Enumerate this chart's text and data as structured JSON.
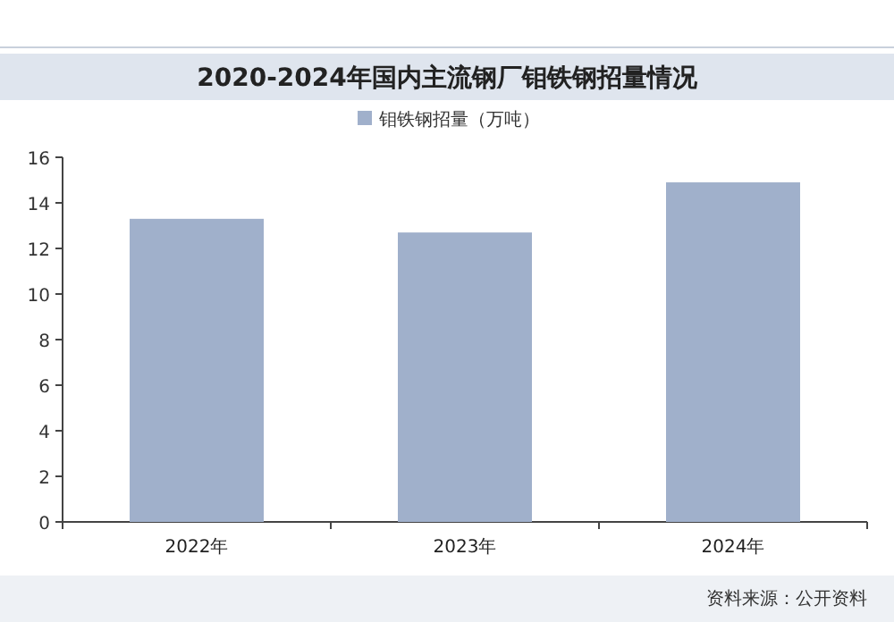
{
  "chart_data": {
    "type": "bar",
    "title": "2020-2024年国内主流钢厂钼铁钢招量情况",
    "categories": [
      "2022年",
      "2023年",
      "2024年"
    ],
    "series": [
      {
        "name": "钼铁钢招量（万吨）",
        "color": "#a0b0cb",
        "values": [
          13.3,
          12.7,
          14.9
        ]
      }
    ],
    "ylim": [
      0,
      16
    ],
    "yticks": [
      0,
      2,
      4,
      6,
      8,
      10,
      12,
      14,
      16
    ],
    "legend": "top",
    "annotations": [
      "资料来源：公开资料"
    ]
  }
}
